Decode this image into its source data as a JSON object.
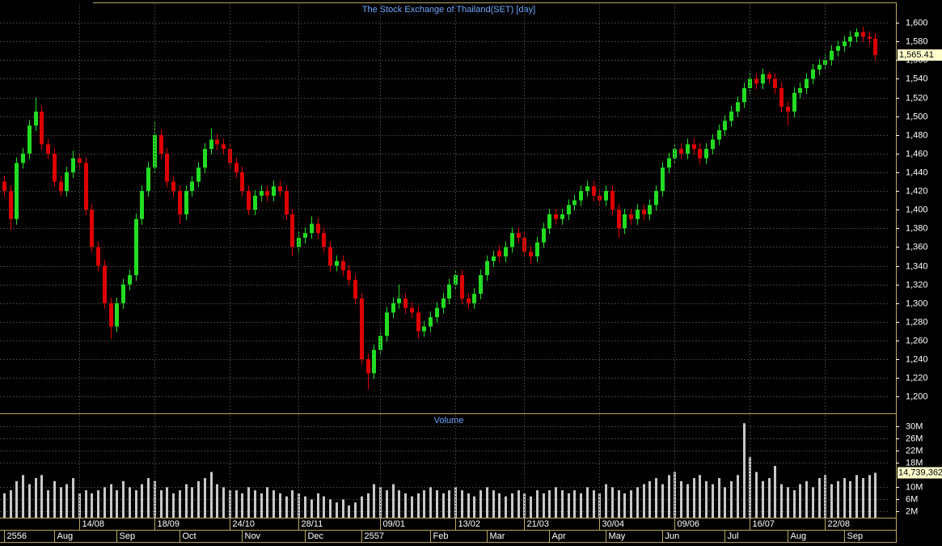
{
  "chart_data": [
    {
      "type": "candlestick",
      "title": "The Stock Exchange of Thailand(SET) [day]",
      "up_color": "#22dd22",
      "down_color": "#dd0000",
      "xlim": [
        -0.645,
        141.29
      ],
      "ylim": [
        1183,
        1620
      ],
      "yticks": [
        {
          "value": 1200,
          "label": "1,200"
        },
        {
          "value": 1220,
          "label": "1,220"
        },
        {
          "value": 1240,
          "label": "1,240"
        },
        {
          "value": 1260,
          "label": "1,260"
        },
        {
          "value": 1280,
          "label": "1,280"
        },
        {
          "value": 1300,
          "label": "1,300"
        },
        {
          "value": 1320,
          "label": "1,320"
        },
        {
          "value": 1340,
          "label": "1,340"
        },
        {
          "value": 1360,
          "label": "1,360"
        },
        {
          "value": 1380,
          "label": "1,380"
        },
        {
          "value": 1400,
          "label": "1,400"
        },
        {
          "value": 1420,
          "label": "1,420"
        },
        {
          "value": 1440,
          "label": "1,440"
        },
        {
          "value": 1460,
          "label": "1,460"
        },
        {
          "value": 1480,
          "label": "1,480"
        },
        {
          "value": 1500,
          "label": "1,500"
        },
        {
          "value": 1520,
          "label": "1,520"
        },
        {
          "value": 1540,
          "label": "1,540"
        },
        {
          "value": 1560,
          "label": "1,560"
        },
        {
          "value": 1580,
          "label": "1,580"
        },
        {
          "value": 1600,
          "label": "1,600"
        }
      ],
      "grid": true,
      "last_label": "1,565.41",
      "open": [
        1430,
        1420,
        1390,
        1450,
        1460,
        1490,
        1505,
        1470,
        1460,
        1430,
        1420,
        1440,
        1455,
        1450,
        1400,
        1360,
        1340,
        1300,
        1275,
        1300,
        1320,
        1330,
        1390,
        1420,
        1445,
        1480,
        1460,
        1430,
        1420,
        1395,
        1420,
        1430,
        1445,
        1465,
        1475,
        1470,
        1465,
        1450,
        1440,
        1420,
        1400,
        1415,
        1420,
        1415,
        1425,
        1420,
        1395,
        1360,
        1370,
        1375,
        1385,
        1375,
        1360,
        1340,
        1345,
        1335,
        1325,
        1305,
        1240,
        1225,
        1250,
        1265,
        1290,
        1300,
        1305,
        1295,
        1290,
        1270,
        1275,
        1285,
        1295,
        1305,
        1320,
        1330,
        1305,
        1300,
        1310,
        1330,
        1345,
        1356,
        1350,
        1360,
        1375,
        1370,
        1355,
        1350,
        1365,
        1380,
        1395,
        1390,
        1395,
        1405,
        1410,
        1420,
        1425,
        1415,
        1410,
        1420,
        1400,
        1380,
        1395,
        1390,
        1400,
        1395,
        1405,
        1420,
        1445,
        1455,
        1465,
        1460,
        1470,
        1465,
        1455,
        1465,
        1475,
        1485,
        1495,
        1505,
        1515,
        1530,
        1540,
        1535,
        1545,
        1540,
        1530,
        1510,
        1505,
        1525,
        1530,
        1540,
        1550,
        1555,
        1560,
        1570,
        1575,
        1580,
        1585,
        1590,
        1585,
        1583
      ],
      "high": [
        1436,
        1426,
        1456,
        1466,
        1496,
        1520,
        1511,
        1476,
        1466,
        1436,
        1446,
        1463,
        1461,
        1456,
        1406,
        1366,
        1346,
        1306,
        1306,
        1326,
        1336,
        1396,
        1426,
        1451,
        1494,
        1486,
        1466,
        1436,
        1426,
        1426,
        1436,
        1451,
        1471,
        1487,
        1481,
        1476,
        1471,
        1456,
        1446,
        1426,
        1421,
        1426,
        1426,
        1431,
        1431,
        1426,
        1401,
        1376,
        1381,
        1393,
        1391,
        1381,
        1366,
        1351,
        1351,
        1341,
        1331,
        1311,
        1246,
        1256,
        1271,
        1296,
        1306,
        1320,
        1311,
        1301,
        1296,
        1281,
        1291,
        1301,
        1311,
        1326,
        1336,
        1336,
        1311,
        1316,
        1336,
        1351,
        1356,
        1362,
        1366,
        1381,
        1381,
        1376,
        1361,
        1371,
        1386,
        1401,
        1401,
        1401,
        1411,
        1416,
        1426,
        1431,
        1431,
        1421,
        1426,
        1426,
        1406,
        1401,
        1401,
        1406,
        1406,
        1411,
        1426,
        1451,
        1461,
        1471,
        1471,
        1476,
        1476,
        1471,
        1471,
        1481,
        1491,
        1501,
        1511,
        1521,
        1536,
        1548,
        1546,
        1551,
        1548,
        1546,
        1536,
        1516,
        1531,
        1536,
        1546,
        1556,
        1561,
        1566,
        1576,
        1581,
        1586,
        1591,
        1594,
        1596,
        1591,
        1589
      ],
      "low": [
        1414,
        1378,
        1384,
        1444,
        1454,
        1484,
        1464,
        1454,
        1424,
        1414,
        1414,
        1434,
        1444,
        1394,
        1354,
        1334,
        1294,
        1262,
        1269,
        1294,
        1314,
        1324,
        1384,
        1414,
        1439,
        1454,
        1424,
        1414,
        1385,
        1389,
        1414,
        1424,
        1439,
        1459,
        1464,
        1459,
        1444,
        1434,
        1414,
        1394,
        1394,
        1409,
        1409,
        1409,
        1414,
        1389,
        1350,
        1354,
        1364,
        1369,
        1369,
        1354,
        1334,
        1334,
        1329,
        1319,
        1299,
        1234,
        1208,
        1219,
        1244,
        1259,
        1284,
        1294,
        1289,
        1284,
        1262,
        1264,
        1269,
        1279,
        1289,
        1299,
        1314,
        1299,
        1294,
        1294,
        1304,
        1324,
        1339,
        1344,
        1344,
        1354,
        1364,
        1349,
        1342,
        1344,
        1359,
        1374,
        1384,
        1384,
        1389,
        1399,
        1404,
        1414,
        1409,
        1404,
        1404,
        1394,
        1370,
        1374,
        1384,
        1384,
        1389,
        1389,
        1399,
        1414,
        1439,
        1449,
        1454,
        1454,
        1459,
        1449,
        1449,
        1459,
        1469,
        1479,
        1489,
        1499,
        1509,
        1524,
        1529,
        1529,
        1534,
        1524,
        1504,
        1490,
        1499,
        1519,
        1524,
        1534,
        1544,
        1549,
        1554,
        1564,
        1569,
        1574,
        1579,
        1579,
        1577,
        1560
      ],
      "close": [
        1420,
        1390,
        1450,
        1460,
        1490,
        1505,
        1470,
        1460,
        1430,
        1420,
        1440,
        1455,
        1450,
        1400,
        1360,
        1340,
        1300,
        1275,
        1300,
        1320,
        1330,
        1390,
        1420,
        1445,
        1480,
        1460,
        1430,
        1420,
        1395,
        1420,
        1430,
        1445,
        1465,
        1475,
        1470,
        1465,
        1450,
        1440,
        1420,
        1400,
        1415,
        1420,
        1415,
        1425,
        1420,
        1395,
        1360,
        1370,
        1375,
        1385,
        1375,
        1360,
        1340,
        1345,
        1335,
        1325,
        1305,
        1240,
        1225,
        1250,
        1265,
        1290,
        1300,
        1305,
        1295,
        1290,
        1270,
        1275,
        1285,
        1295,
        1305,
        1320,
        1330,
        1305,
        1300,
        1310,
        1330,
        1345,
        1350,
        1350,
        1360,
        1375,
        1370,
        1355,
        1350,
        1365,
        1380,
        1395,
        1390,
        1395,
        1405,
        1410,
        1420,
        1425,
        1415,
        1410,
        1420,
        1400,
        1380,
        1395,
        1390,
        1400,
        1395,
        1405,
        1420,
        1445,
        1455,
        1465,
        1460,
        1470,
        1465,
        1455,
        1465,
        1475,
        1485,
        1495,
        1505,
        1515,
        1530,
        1540,
        1535,
        1545,
        1540,
        1530,
        1510,
        1505,
        1525,
        1530,
        1540,
        1550,
        1555,
        1560,
        1570,
        1575,
        1580,
        1585,
        1590,
        1585,
        1583,
        1565.41
      ]
    },
    {
      "type": "bar",
      "title": "Volume",
      "color": "#c8c8c8",
      "xlim": [
        -0.645,
        141.29
      ],
      "ylim": [
        0,
        34000000
      ],
      "yticks": [
        {
          "value": 2000000,
          "label": "2M"
        },
        {
          "value": 6000000,
          "label": "6M"
        },
        {
          "value": 10000000,
          "label": "10M"
        },
        {
          "value": 18000000,
          "label": "18M"
        },
        {
          "value": 22000000,
          "label": "22M"
        },
        {
          "value": 26000000,
          "label": "26M"
        },
        {
          "value": 30000000,
          "label": "30M"
        }
      ],
      "last_label": "14,739,362",
      "xticks": [
        {
          "value": 12,
          "label": "14/08"
        },
        {
          "value": 24,
          "label": "18/09"
        },
        {
          "value": 36,
          "label": "24/10"
        },
        {
          "value": 47,
          "label": "28/11"
        },
        {
          "value": 60,
          "label": "09/01"
        },
        {
          "value": 72,
          "label": "13/02"
        },
        {
          "value": 83,
          "label": "21/03"
        },
        {
          "value": 95,
          "label": "30/04"
        },
        {
          "value": 107,
          "label": "09/06"
        },
        {
          "value": 119,
          "label": "16/07"
        },
        {
          "value": 131,
          "label": "22/08"
        }
      ],
      "xticks_months": [
        {
          "value": 0,
          "label": "2556"
        },
        {
          "value": 8,
          "label": "Aug"
        },
        {
          "value": 18,
          "label": "Sep"
        },
        {
          "value": 28,
          "label": "Oct"
        },
        {
          "value": 38,
          "label": "Nov"
        },
        {
          "value": 48,
          "label": "Dec"
        },
        {
          "value": 57,
          "label": "2557"
        },
        {
          "value": 68,
          "label": "Feb"
        },
        {
          "value": 77,
          "label": "Mar"
        },
        {
          "value": 87,
          "label": "Apr"
        },
        {
          "value": 96,
          "label": "May"
        },
        {
          "value": 105,
          "label": "Jun"
        },
        {
          "value": 115,
          "label": "Jul"
        },
        {
          "value": 125,
          "label": "Aug"
        },
        {
          "value": 134,
          "label": "Sep"
        }
      ],
      "values": [
        8000000,
        9000000,
        12000000,
        14000000,
        11000000,
        13000000,
        14000000,
        9000000,
        12000000,
        10000000,
        11000000,
        13000000,
        8000000,
        9000000,
        8000000,
        9000000,
        10000000,
        11000000,
        9000000,
        12000000,
        10000000,
        9000000,
        11000000,
        13000000,
        12000000,
        9000000,
        10000000,
        8000000,
        9000000,
        11000000,
        10000000,
        12000000,
        13000000,
        15000000,
        11000000,
        10000000,
        9000000,
        9000000,
        8000000,
        10000000,
        9000000,
        8000000,
        10000000,
        9000000,
        8000000,
        7000000,
        9000000,
        8000000,
        7000000,
        6000000,
        8000000,
        7000000,
        6000000,
        5000000,
        6000000,
        4000000,
        5000000,
        7000000,
        8000000,
        11000000,
        10000000,
        9000000,
        11000000,
        9000000,
        8000000,
        7000000,
        8000000,
        9000000,
        10000000,
        9000000,
        8000000,
        9000000,
        10000000,
        9000000,
        8000000,
        7000000,
        9000000,
        10000000,
        9000000,
        8000000,
        7000000,
        8000000,
        9000000,
        8000000,
        7000000,
        9000000,
        8000000,
        9000000,
        10000000,
        9000000,
        8000000,
        9000000,
        8000000,
        10000000,
        9000000,
        8000000,
        11000000,
        10000000,
        9000000,
        8000000,
        9000000,
        10000000,
        11000000,
        12000000,
        13000000,
        11000000,
        14000000,
        15000000,
        12000000,
        11000000,
        13000000,
        14000000,
        12000000,
        11000000,
        13000000,
        10000000,
        12000000,
        14000000,
        31000000,
        20000000,
        15000000,
        12000000,
        13000000,
        17000000,
        11000000,
        10000000,
        9000000,
        11000000,
        12000000,
        10000000,
        13000000,
        14000000,
        11000000,
        12000000,
        13000000,
        12000000,
        14000000,
        13000000,
        14000000,
        14739362
      ]
    }
  ]
}
